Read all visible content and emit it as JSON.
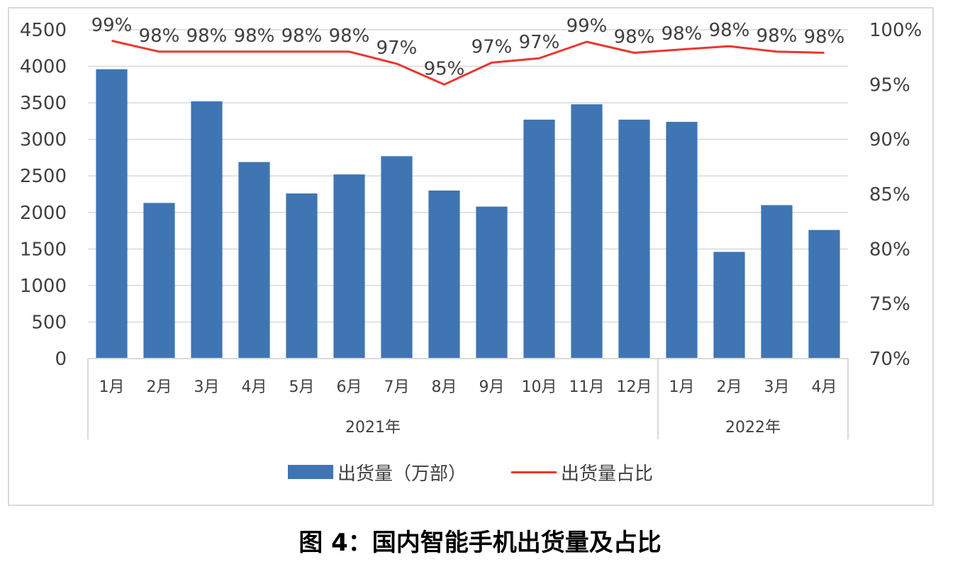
{
  "chart_data": {
    "type": "bar+line",
    "categories": [
      "1月",
      "2月",
      "3月",
      "4月",
      "5月",
      "6月",
      "7月",
      "8月",
      "9月",
      "10月",
      "11月",
      "12月",
      "1月",
      "2月",
      "3月",
      "4月"
    ],
    "groups": [
      {
        "label": "2021年",
        "count": 12
      },
      {
        "label": "2022年",
        "count": 4
      }
    ],
    "series": [
      {
        "name": "出货量（万部）",
        "type": "bar",
        "axis": "left",
        "color": "#3f75b3",
        "values": [
          3960,
          2130,
          3520,
          2690,
          2260,
          2520,
          2770,
          2300,
          2080,
          3270,
          3480,
          3270,
          3240,
          1460,
          2100,
          1760
        ]
      },
      {
        "name": "出货量占比",
        "type": "line",
        "axis": "right",
        "color": "#e8382f",
        "values": [
          99.0,
          98.0,
          98.0,
          98.0,
          98.0,
          98.0,
          96.9,
          95.0,
          97.0,
          97.4,
          98.9,
          97.9,
          98.2,
          98.5,
          98.0,
          97.9
        ],
        "labels": [
          "99%",
          "98%",
          "98%",
          "98%",
          "98%",
          "98%",
          "97%",
          "95%",
          "97%",
          "97%",
          "99%",
          "98%",
          "98%",
          "98%",
          "98%",
          "98%"
        ]
      }
    ],
    "y_left": {
      "min": 0,
      "max": 4500,
      "ticks": [
        "0",
        "500",
        "1000",
        "1500",
        "2000",
        "2500",
        "3000",
        "3500",
        "4000",
        "4500"
      ]
    },
    "y_right": {
      "min": 70,
      "max": 100,
      "ticks": [
        "70%",
        "75%",
        "80%",
        "85%",
        "90%",
        "95%",
        "100%"
      ]
    },
    "grid": true,
    "legend_position": "bottom",
    "title": "图 4：国内智能手机出货量及占比"
  },
  "legend": {
    "bar_label": "出货量（万部）",
    "line_label": "出货量占比"
  },
  "caption": "图 4：国内智能手机出货量及占比"
}
